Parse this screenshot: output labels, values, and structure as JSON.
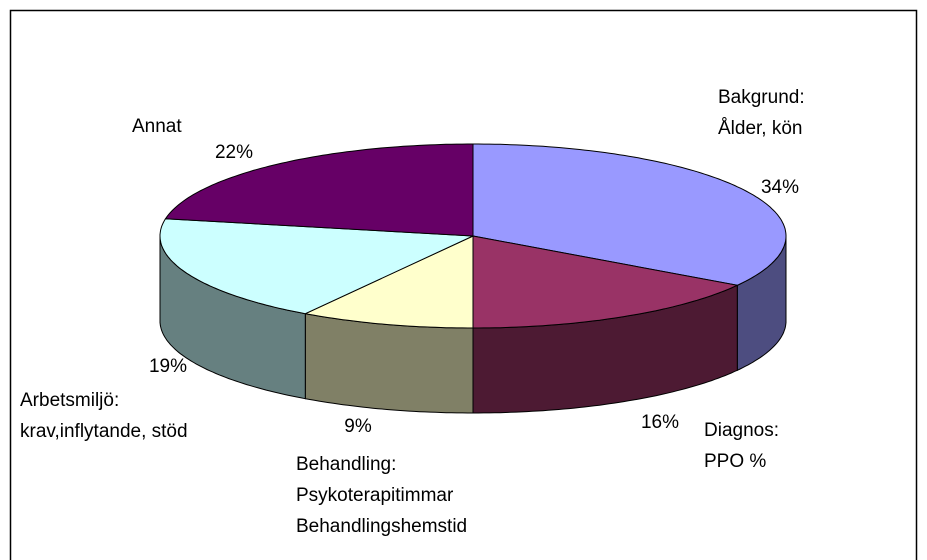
{
  "chart_data": {
    "type": "pie",
    "three_d": true,
    "categories": [
      [
        "Bakgrund:",
        "Ålder, kön"
      ],
      [
        "Diagnos:",
        "PPO %"
      ],
      [
        "Behandling:",
        "Psykoterapitimmar",
        "Behandlingshemstid"
      ],
      [
        "Arbetsmiljö:",
        "krav,inflytande, stöd"
      ],
      [
        "Annat"
      ]
    ],
    "values": [
      34,
      16,
      9,
      19,
      22
    ],
    "value_labels": [
      "34%",
      "16%",
      "9%",
      "19%",
      "22%"
    ],
    "colors": [
      "#9999ff",
      "#993366",
      "#ffffcc",
      "#ccffff",
      "#660066"
    ]
  }
}
